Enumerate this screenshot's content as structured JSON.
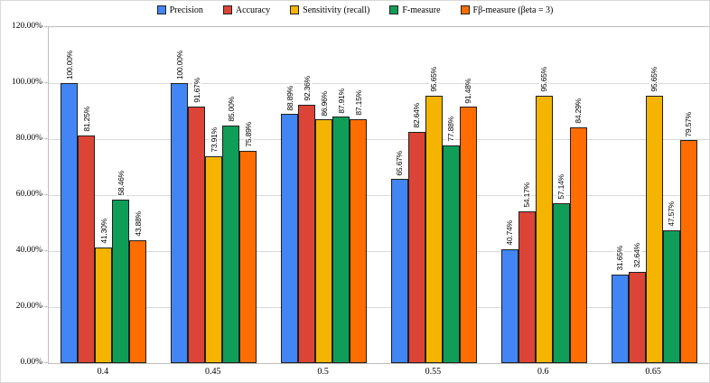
{
  "chart_data": {
    "type": "bar",
    "title": "",
    "categories": [
      "0.4",
      "0.45",
      "0.5",
      "0.55",
      "0.6",
      "0.65"
    ],
    "series": [
      {
        "name": "Precision",
        "color": "#4285F4",
        "values": [
          100.0,
          100.0,
          88.89,
          65.67,
          40.74,
          31.65
        ]
      },
      {
        "name": "Accuracy",
        "color": "#DB4437",
        "values": [
          81.25,
          91.67,
          92.36,
          82.64,
          54.17,
          32.64
        ]
      },
      {
        "name": "Sensitivity (recall)",
        "color": "#F4B400",
        "values": [
          41.3,
          73.91,
          86.96,
          95.65,
          95.65,
          95.65
        ]
      },
      {
        "name": "F-measure",
        "color": "#0F9D58",
        "values": [
          58.46,
          85.0,
          87.91,
          77.88,
          57.14,
          47.57
        ]
      },
      {
        "name": "Fβ-measure (βeta = 3)",
        "color": "#FF6D00",
        "values": [
          43.88,
          75.89,
          87.15,
          91.48,
          84.29,
          79.57
        ]
      }
    ],
    "y_axis": {
      "min": 0,
      "max": 120,
      "step": 20,
      "tick_labels": [
        "0.00%",
        "20.00%",
        "40.00%",
        "60.00%",
        "80.00%",
        "100.00%",
        "120.00%"
      ]
    },
    "value_label_format": "0.00%",
    "legend_position": "top",
    "grid": true,
    "bar_outline_color": "#1f1f1f",
    "gridline_color": "#d9d9d9"
  }
}
